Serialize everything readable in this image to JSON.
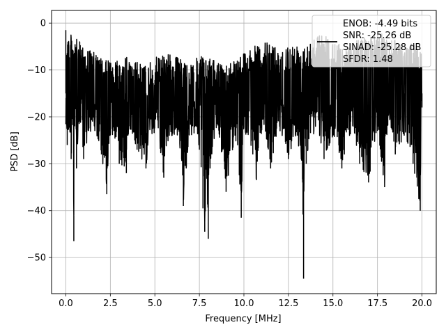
{
  "chart_data": {
    "type": "line",
    "title": "",
    "xlabel": "Frequency [MHz]",
    "ylabel": "PSD [dB]",
    "xlim": [
      -0.8,
      20.8
    ],
    "ylim": [
      -57.7,
      2.7
    ],
    "xticks": [
      0.0,
      2.5,
      5.0,
      7.5,
      10.0,
      12.5,
      15.0,
      17.5,
      20.0
    ],
    "xtick_labels": [
      "0.0",
      "2.5",
      "5.0",
      "7.5",
      "10.0",
      "12.5",
      "15.0",
      "17.5",
      "20.0"
    ],
    "yticks": [
      0,
      -10,
      -20,
      -30,
      -40,
      -50
    ],
    "ytick_labels": [
      "0",
      "−10",
      "−20",
      "−30",
      "−40",
      "−50"
    ],
    "grid": true,
    "legend_position": "top-right",
    "series": [
      {
        "color": "#000000",
        "x": [
          0,
          0.02,
          0.05,
          0.08,
          0.1,
          0.15,
          0.2,
          0.3,
          0.4,
          0.45,
          0.5,
          0.6,
          0.8,
          1.0,
          1.5,
          2.0,
          2.3,
          2.5,
          3.0,
          3.4,
          3.5,
          4.0,
          4.5,
          5.0,
          5.5,
          6.0,
          6.5,
          6.6,
          7.0,
          7.5,
          7.7,
          7.75,
          7.8,
          7.9,
          8.0,
          8.05,
          8.1,
          8.5,
          9.0,
          9.5,
          9.85,
          10.0,
          10.5,
          10.7,
          11.0,
          11.5,
          12.0,
          12.5,
          13.0,
          13.3,
          13.35,
          13.4,
          13.5,
          14.0,
          14.5,
          15.0,
          15.5,
          16.0,
          16.5,
          17.0,
          17.5,
          17.9,
          18.0,
          18.5,
          19.0,
          19.5,
          19.9,
          20.0
        ],
        "y": [
          -1.5,
          -14,
          -9,
          -26,
          -12,
          -20,
          -15,
          -29,
          -17,
          -46.5,
          -22,
          -31,
          -17,
          -29,
          -21,
          -28,
          -36.5,
          -19,
          -30,
          -32,
          -20,
          -27,
          -31,
          -19,
          -33,
          -18,
          -29,
          -39,
          -20,
          -27,
          -39.5,
          -22,
          -44.5,
          -30,
          -46,
          -25,
          -31,
          -20,
          -36,
          -24,
          -41.5,
          -19,
          -28,
          -33.5,
          -18,
          -31,
          -21,
          -29,
          -24,
          -34,
          -54.5,
          -22,
          -30,
          -19,
          -29,
          -24,
          -31,
          -21,
          -30,
          -34,
          -23,
          -35,
          -20,
          -28,
          -24,
          -30,
          -40,
          -18
        ],
        "y_upper_envelope": [
          -1.5,
          -5,
          -8,
          -7,
          -9,
          -6,
          -8,
          -7,
          -9,
          -6,
          -4,
          -5,
          -4,
          -2,
          -5,
          -3,
          -2,
          -4,
          -5
        ]
      }
    ],
    "legend": {
      "line_color": "#000000",
      "entries": [
        "ENOB: -4.49 bits",
        "SNR: -25.26 dB",
        "SINAD: -25.28 dB",
        "SFDR: 1.48"
      ]
    }
  }
}
